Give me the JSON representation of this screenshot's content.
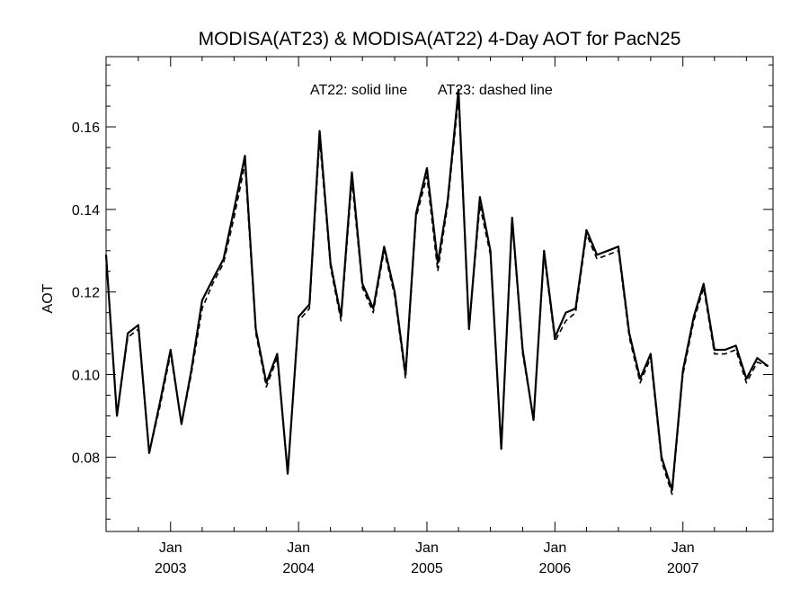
{
  "chart_data": {
    "type": "line",
    "title": "MODISA(AT23) & MODISA(AT22) 4-Day AOT for PacN25",
    "annotation_solid": "AT22: solid line",
    "annotation_dashed": "AT23: dashed line",
    "xlabel": "",
    "ylabel": "AOT",
    "xlim": [
      "2002-07-01",
      "2007-09-15"
    ],
    "ylim": [
      0.062,
      0.177
    ],
    "yticks": [
      0.08,
      0.1,
      0.12,
      0.14,
      0.16
    ],
    "ytick_labels": [
      "0.08",
      "0.10",
      "0.12",
      "0.14",
      "0.16"
    ],
    "xticks": [
      {
        "date": "2003-01-01",
        "month": "Jan",
        "year": "2003"
      },
      {
        "date": "2004-01-01",
        "month": "Jan",
        "year": "2004"
      },
      {
        "date": "2005-01-01",
        "month": "Jan",
        "year": "2005"
      },
      {
        "date": "2006-01-01",
        "month": "Jan",
        "year": "2006"
      },
      {
        "date": "2007-01-01",
        "month": "Jan",
        "year": "2007"
      }
    ],
    "x": [
      "2002-07-01",
      "2002-08-01",
      "2002-09-01",
      "2002-10-01",
      "2002-11-01",
      "2002-12-01",
      "2003-01-01",
      "2003-02-01",
      "2003-03-01",
      "2003-04-01",
      "2003-05-01",
      "2003-06-01",
      "2003-07-01",
      "2003-08-01",
      "2003-09-01",
      "2003-10-01",
      "2003-11-01",
      "2003-12-01",
      "2004-01-01",
      "2004-02-01",
      "2004-03-01",
      "2004-04-01",
      "2004-05-01",
      "2004-06-01",
      "2004-07-01",
      "2004-08-01",
      "2004-09-01",
      "2004-10-01",
      "2004-11-01",
      "2004-12-01",
      "2005-01-01",
      "2005-02-01",
      "2005-03-01",
      "2005-04-01",
      "2005-05-01",
      "2005-06-01",
      "2005-07-01",
      "2005-08-01",
      "2005-09-01",
      "2005-10-01",
      "2005-11-01",
      "2005-12-01",
      "2006-01-01",
      "2006-02-01",
      "2006-03-01",
      "2006-04-01",
      "2006-05-01",
      "2006-06-01",
      "2006-07-01",
      "2006-08-01",
      "2006-09-01",
      "2006-10-01",
      "2006-11-01",
      "2006-12-01",
      "2007-01-01",
      "2007-02-01",
      "2007-03-01",
      "2007-04-01",
      "2007-05-01",
      "2007-06-01",
      "2007-07-01",
      "2007-08-01",
      "2007-09-01"
    ],
    "series": [
      {
        "name": "AT22",
        "style": "solid",
        "color": "#000000",
        "values": [
          0.129,
          0.09,
          0.11,
          0.112,
          0.081,
          0.093,
          0.106,
          0.088,
          0.101,
          0.118,
          0.123,
          0.128,
          0.14,
          0.153,
          0.111,
          0.098,
          0.105,
          0.076,
          0.114,
          0.117,
          0.159,
          0.127,
          0.114,
          0.149,
          0.122,
          0.116,
          0.131,
          0.12,
          0.1,
          0.139,
          0.15,
          0.127,
          0.142,
          0.169,
          0.111,
          0.143,
          0.13,
          0.082,
          0.138,
          0.106,
          0.089,
          0.13,
          0.109,
          0.115,
          0.116,
          0.135,
          0.129,
          0.13,
          0.131,
          0.11,
          0.099,
          0.105,
          0.08,
          0.072,
          0.101,
          0.114,
          0.122,
          0.106,
          0.106,
          0.107,
          0.099,
          0.104,
          0.102
        ]
      },
      {
        "name": "AT23",
        "style": "dashed",
        "color": "#000000",
        "values": [
          0.129,
          0.09,
          0.109,
          0.111,
          0.081,
          0.092,
          0.105,
          0.088,
          0.1,
          0.116,
          0.122,
          0.127,
          0.138,
          0.151,
          0.11,
          0.097,
          0.104,
          0.076,
          0.113,
          0.116,
          0.157,
          0.126,
          0.113,
          0.147,
          0.121,
          0.115,
          0.13,
          0.119,
          0.099,
          0.138,
          0.148,
          0.125,
          0.141,
          0.167,
          0.111,
          0.141,
          0.129,
          0.082,
          0.137,
          0.105,
          0.089,
          0.129,
          0.108,
          0.113,
          0.115,
          0.134,
          0.128,
          0.129,
          0.13,
          0.109,
          0.098,
          0.104,
          0.079,
          0.071,
          0.1,
          0.113,
          0.121,
          0.105,
          0.105,
          0.106,
          0.098,
          0.103,
          0.102
        ]
      }
    ]
  }
}
